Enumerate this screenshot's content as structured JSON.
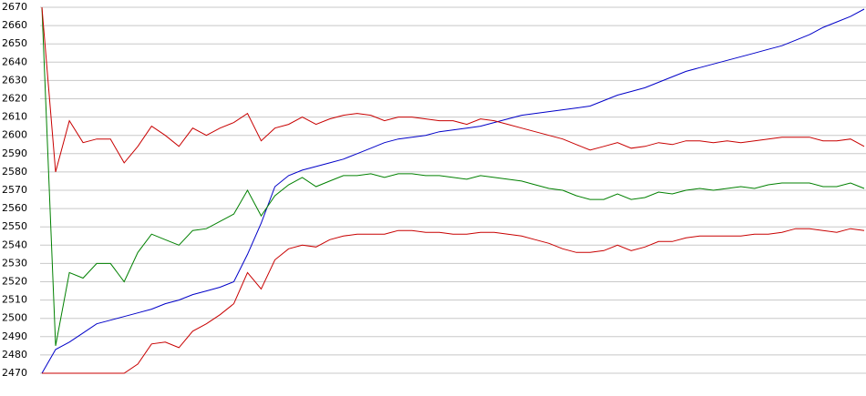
{
  "chart_data": {
    "type": "line",
    "ylim": [
      2470,
      2670
    ],
    "yticks": [
      2470,
      2480,
      2490,
      2500,
      2510,
      2520,
      2530,
      2540,
      2550,
      2560,
      2570,
      2580,
      2590,
      2600,
      2610,
      2620,
      2630,
      2640,
      2650,
      2660,
      2670
    ],
    "grid": true,
    "series": [
      {
        "color": "#0000c8",
        "values": [
          2470,
          2483,
          2487,
          2492,
          2497,
          2499,
          2501,
          2503,
          2505,
          2508,
          2510,
          2513,
          2515,
          2517,
          2520,
          2535,
          2552,
          2572,
          2578,
          2581,
          2583,
          2585,
          2587,
          2590,
          2593,
          2596,
          2598,
          2599,
          2600,
          2602,
          2603,
          2604,
          2605,
          2607,
          2609,
          2611,
          2612,
          2613,
          2614,
          2615,
          2616,
          2619,
          2622,
          2624,
          2626,
          2629,
          2632,
          2635,
          2637,
          2639,
          2641,
          2643,
          2645,
          2647,
          2649,
          2652,
          2655,
          2659,
          2662,
          2665,
          2669
        ]
      },
      {
        "color": "#008000",
        "values": [
          2670,
          2485,
          2525,
          2522,
          2530,
          2530,
          2520,
          2536,
          2546,
          2543,
          2540,
          2548,
          2549,
          2553,
          2557,
          2570,
          2556,
          2567,
          2573,
          2577,
          2572,
          2575,
          2578,
          2578,
          2579,
          2577,
          2579,
          2579,
          2578,
          2578,
          2577,
          2576,
          2578,
          2577,
          2576,
          2575,
          2573,
          2571,
          2570,
          2567,
          2565,
          2565,
          2568,
          2565,
          2566,
          2569,
          2568,
          2570,
          2571,
          2570,
          2571,
          2572,
          2571,
          2573,
          2574,
          2574,
          2574,
          2572,
          2572,
          2574,
          2571
        ]
      },
      {
        "color": "#c80000",
        "values": [
          2670,
          2580,
          2608,
          2596,
          2598,
          2598,
          2585,
          2594,
          2605,
          2600,
          2594,
          2604,
          2600,
          2604,
          2607,
          2612,
          2597,
          2604,
          2606,
          2610,
          2606,
          2609,
          2611,
          2612,
          2611,
          2608,
          2610,
          2610,
          2609,
          2608,
          2608,
          2606,
          2609,
          2608,
          2606,
          2604,
          2602,
          2600,
          2598,
          2595,
          2592,
          2594,
          2596,
          2593,
          2594,
          2596,
          2595,
          2597,
          2597,
          2596,
          2597,
          2596,
          2597,
          2598,
          2599,
          2599,
          2599,
          2597,
          2597,
          2598,
          2594
        ]
      },
      {
        "color": "#c80000",
        "values": [
          2470,
          2470,
          2470,
          2470,
          2470,
          2470,
          2470,
          2475,
          2486,
          2487,
          2484,
          2493,
          2497,
          2502,
          2508,
          2525,
          2516,
          2532,
          2538,
          2540,
          2539,
          2543,
          2545,
          2546,
          2546,
          2546,
          2548,
          2548,
          2547,
          2547,
          2546,
          2546,
          2547,
          2547,
          2546,
          2545,
          2543,
          2541,
          2538,
          2536,
          2536,
          2537,
          2540,
          2537,
          2539,
          2542,
          2542,
          2544,
          2545,
          2545,
          2545,
          2545,
          2546,
          2546,
          2547,
          2549,
          2549,
          2548,
          2547,
          2549,
          2548
        ]
      }
    ]
  }
}
